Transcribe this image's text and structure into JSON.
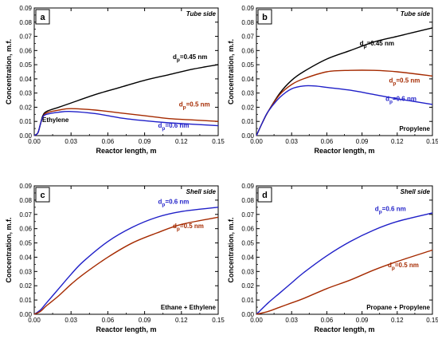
{
  "chart_data": [
    {
      "panel": "a",
      "type": "line",
      "side_label": "Tube side",
      "species_label": "Ethylene",
      "xlabel": "Reactor length, m",
      "ylabel": "Concentration, m.f.",
      "xlim": [
        0,
        0.15
      ],
      "ylim": [
        0,
        0.09
      ],
      "xticks": [
        "0.00",
        "0.03",
        "0.06",
        "0.09",
        "0.12",
        "0.15"
      ],
      "yticks": [
        "0.00",
        "0.01",
        "0.02",
        "0.03",
        "0.04",
        "0.05",
        "0.06",
        "0.07",
        "0.08",
        "0.09"
      ],
      "series": [
        {
          "name": "d_p=0.45 nm",
          "color": "#000000",
          "x": [
            0,
            0.003,
            0.005,
            0.007,
            0.01,
            0.02,
            0.03,
            0.05,
            0.07,
            0.09,
            0.11,
            0.13,
            0.15
          ],
          "y": [
            0,
            0.002,
            0.008,
            0.014,
            0.017,
            0.02,
            0.023,
            0.029,
            0.034,
            0.039,
            0.043,
            0.047,
            0.05
          ]
        },
        {
          "name": "d_p=0.5 nm",
          "color": "#a52a00",
          "x": [
            0,
            0.003,
            0.005,
            0.007,
            0.01,
            0.02,
            0.03,
            0.05,
            0.07,
            0.09,
            0.11,
            0.13,
            0.15
          ],
          "y": [
            0,
            0.002,
            0.008,
            0.013,
            0.016,
            0.018,
            0.019,
            0.018,
            0.016,
            0.014,
            0.012,
            0.011,
            0.01
          ]
        },
        {
          "name": "d_p=0.6 nm",
          "color": "#1f1fc8",
          "x": [
            0,
            0.003,
            0.005,
            0.007,
            0.01,
            0.02,
            0.03,
            0.05,
            0.07,
            0.09,
            0.11,
            0.13,
            0.15
          ],
          "y": [
            0,
            0.002,
            0.008,
            0.013,
            0.015,
            0.0165,
            0.017,
            0.0155,
            0.0125,
            0.0105,
            0.009,
            0.008,
            0.007
          ]
        }
      ],
      "curve_labels": [
        {
          "main": "d",
          "sub": "p",
          "rest": "=0.45 nm",
          "color": "#000000",
          "at": [
            0.113,
            0.054
          ]
        },
        {
          "main": "d",
          "sub": "p",
          "rest": "=0.5 nm",
          "color": "#a52a00",
          "at": [
            0.118,
            0.0205
          ]
        },
        {
          "main": "d",
          "sub": "p",
          "rest": "=0.6 nm",
          "color": "#1f1fc8",
          "at": [
            0.101,
            0.0055
          ]
        }
      ]
    },
    {
      "panel": "b",
      "type": "line",
      "side_label": "Tube side",
      "species_label": "Propylene",
      "xlabel": "Reactor length, m",
      "ylabel": "Concentration, m.f.",
      "xlim": [
        0,
        0.15
      ],
      "ylim": [
        0,
        0.09
      ],
      "xticks": [
        "0.00",
        "0.03",
        "0.06",
        "0.09",
        "0.12",
        "0.15"
      ],
      "yticks": [
        "0.00",
        "0.01",
        "0.02",
        "0.03",
        "0.04",
        "0.05",
        "0.06",
        "0.07",
        "0.08",
        "0.09"
      ],
      "series": [
        {
          "name": "d_p=0.45 nm",
          "color": "#000000",
          "x": [
            0,
            0.005,
            0.01,
            0.02,
            0.03,
            0.04,
            0.06,
            0.08,
            0.1,
            0.12,
            0.15
          ],
          "y": [
            0,
            0.009,
            0.017,
            0.03,
            0.039,
            0.045,
            0.054,
            0.06,
            0.066,
            0.07,
            0.076
          ]
        },
        {
          "name": "d_p=0.5 nm",
          "color": "#a52a00",
          "x": [
            0,
            0.005,
            0.01,
            0.02,
            0.03,
            0.04,
            0.06,
            0.08,
            0.1,
            0.12,
            0.15
          ],
          "y": [
            0,
            0.009,
            0.017,
            0.029,
            0.036,
            0.04,
            0.045,
            0.046,
            0.046,
            0.045,
            0.042
          ]
        },
        {
          "name": "d_p=0.6 nm",
          "color": "#1f1fc8",
          "x": [
            0,
            0.005,
            0.01,
            0.02,
            0.03,
            0.04,
            0.05,
            0.06,
            0.08,
            0.1,
            0.12,
            0.15
          ],
          "y": [
            0,
            0.009,
            0.017,
            0.027,
            0.033,
            0.035,
            0.035,
            0.034,
            0.032,
            0.029,
            0.026,
            0.022
          ]
        }
      ],
      "curve_labels": [
        {
          "main": "d",
          "sub": "p",
          "rest": "=0.45 nm",
          "color": "#000000",
          "at": [
            0.088,
            0.0635
          ]
        },
        {
          "main": "d",
          "sub": "p",
          "rest": "=0.5 nm",
          "color": "#a52a00",
          "at": [
            0.113,
            0.0375
          ]
        },
        {
          "main": "d",
          "sub": "p",
          "rest": "=0.6 nm",
          "color": "#1f1fc8",
          "at": [
            0.11,
            0.0245
          ]
        }
      ]
    },
    {
      "panel": "c",
      "type": "line",
      "side_label": "Shell side",
      "species_label": "Ethane + Ethylene",
      "xlabel": "Reactor length, m",
      "ylabel": "Concentration, m.f.",
      "xlim": [
        0,
        0.15
      ],
      "ylim": [
        0,
        0.09
      ],
      "xticks": [
        "0.00",
        "0.03",
        "0.06",
        "0.09",
        "0.12",
        "0.15"
      ],
      "yticks": [
        "0.00",
        "0.01",
        "0.02",
        "0.03",
        "0.04",
        "0.05",
        "0.06",
        "0.07",
        "0.08",
        "0.09"
      ],
      "series": [
        {
          "name": "d_p=0.6 nm",
          "color": "#1f1fc8",
          "x": [
            0,
            0.005,
            0.01,
            0.02,
            0.03,
            0.04,
            0.06,
            0.08,
            0.1,
            0.12,
            0.15
          ],
          "y": [
            0,
            0.003,
            0.008,
            0.018,
            0.028,
            0.037,
            0.051,
            0.061,
            0.068,
            0.072,
            0.075
          ]
        },
        {
          "name": "d_p=0.5 nm",
          "color": "#a52a00",
          "x": [
            0,
            0.005,
            0.01,
            0.02,
            0.03,
            0.04,
            0.06,
            0.08,
            0.1,
            0.12,
            0.15
          ],
          "y": [
            0,
            0.002,
            0.006,
            0.013,
            0.021,
            0.028,
            0.04,
            0.05,
            0.057,
            0.063,
            0.068
          ]
        }
      ],
      "curve_labels": [
        {
          "main": "d",
          "sub": "p",
          "rest": "=0.6 nm",
          "color": "#1f1fc8",
          "at": [
            0.101,
            0.0775
          ]
        },
        {
          "main": "d",
          "sub": "p",
          "rest": "=0.5 nm",
          "color": "#a52a00",
          "at": [
            0.113,
            0.0605
          ]
        }
      ]
    },
    {
      "panel": "d",
      "type": "line",
      "side_label": "Shell side",
      "species_label": "Propane + Propylene",
      "xlabel": "Reactor length, m",
      "ylabel": "Concentration, m.f.",
      "xlim": [
        0,
        0.15
      ],
      "ylim": [
        0,
        0.09
      ],
      "xticks": [
        "0.00",
        "0.03",
        "0.06",
        "0.09",
        "0.12",
        "0.15"
      ],
      "yticks": [
        "0.00",
        "0.01",
        "0.02",
        "0.03",
        "0.04",
        "0.05",
        "0.06",
        "0.07",
        "0.08",
        "0.09"
      ],
      "series": [
        {
          "name": "d_p=0.6 nm",
          "color": "#1f1fc8",
          "x": [
            0,
            0.01,
            0.02,
            0.03,
            0.04,
            0.06,
            0.08,
            0.1,
            0.12,
            0.15
          ],
          "y": [
            0,
            0.008,
            0.015,
            0.022,
            0.029,
            0.041,
            0.051,
            0.059,
            0.065,
            0.071
          ]
        },
        {
          "name": "d_p=0.5 nm",
          "color": "#a52a00",
          "x": [
            0,
            0.01,
            0.02,
            0.03,
            0.04,
            0.06,
            0.08,
            0.1,
            0.12,
            0.15
          ],
          "y": [
            0,
            0.002,
            0.005,
            0.008,
            0.011,
            0.018,
            0.024,
            0.031,
            0.037,
            0.045
          ]
        }
      ],
      "curve_labels": [
        {
          "main": "d",
          "sub": "p",
          "rest": "=0.6 nm",
          "color": "#1f1fc8",
          "at": [
            0.101,
            0.0725
          ]
        },
        {
          "main": "d",
          "sub": "p",
          "rest": "=0.5 nm",
          "color": "#a52a00",
          "at": [
            0.112,
            0.033
          ]
        }
      ]
    }
  ]
}
